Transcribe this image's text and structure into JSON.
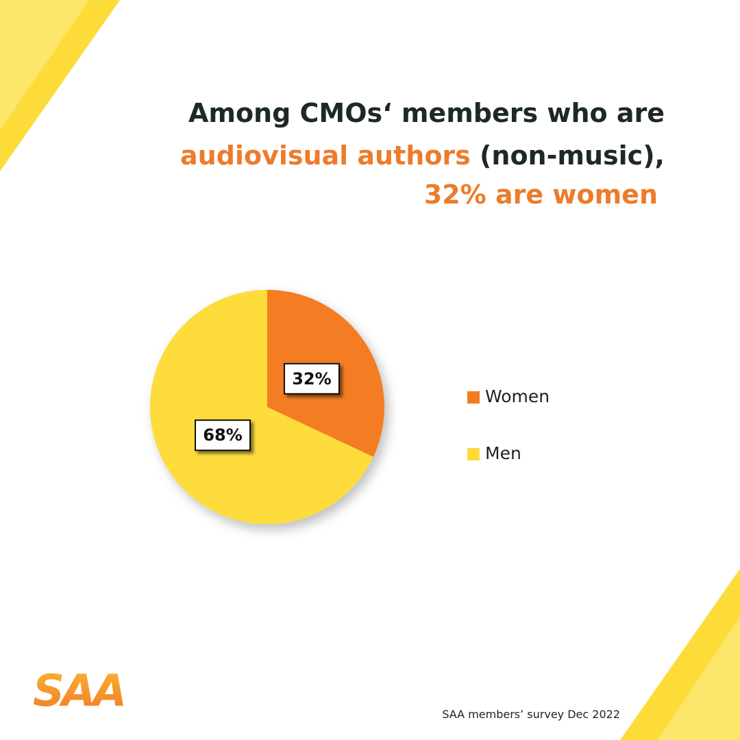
{
  "chart_data": {
    "type": "pie",
    "title": [
      "Among CMOs‘ members who are",
      "audiovisual authors",
      " (non-music),",
      "32% are women"
    ],
    "categories": [
      "Women",
      "Men"
    ],
    "values": [
      32,
      68
    ],
    "value_labels": [
      "32%",
      "68%"
    ],
    "colors": [
      "#f47b20",
      "#fddc3a"
    ],
    "legend": "right"
  },
  "source": "SAA members’ survey Dec 2022",
  "logo": "SAA"
}
